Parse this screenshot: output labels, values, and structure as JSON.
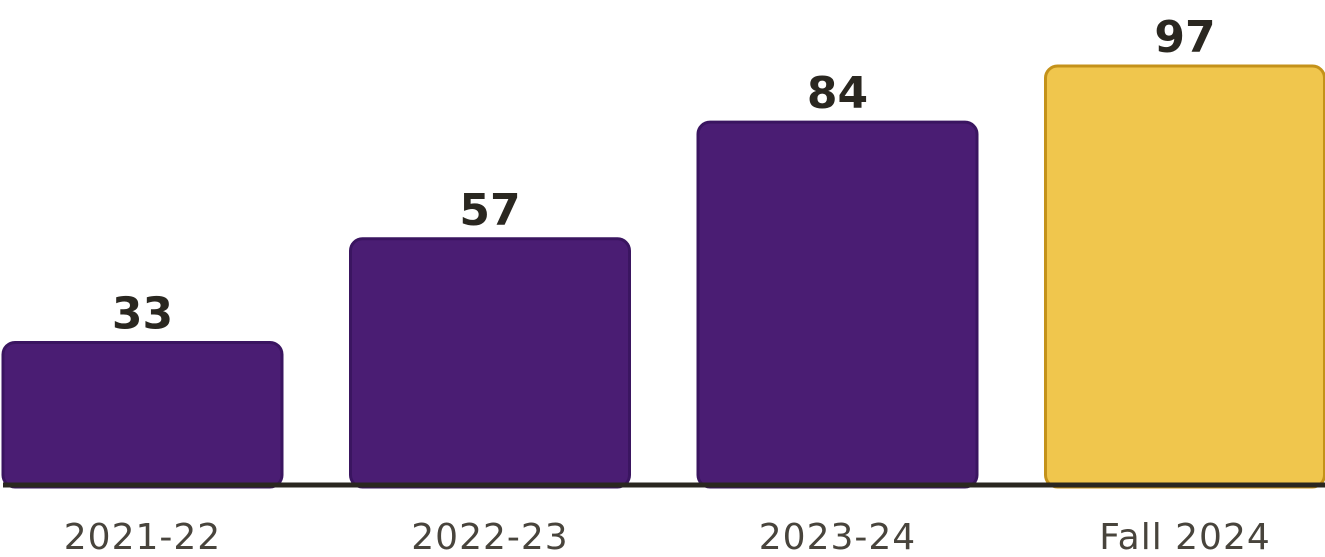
{
  "chart_data": {
    "type": "bar",
    "categories": [
      "2021-22",
      "2022-23",
      "2023-24",
      "Fall 2024"
    ],
    "values": [
      33,
      57,
      84,
      97
    ],
    "title": "",
    "xlabel": "",
    "ylabel": "",
    "ylim": [
      0,
      97
    ],
    "grid": false,
    "legend": "none",
    "colors": {
      "bar_fill": "#4a1d73",
      "bar_stroke": "#3a1560",
      "highlight_fill": "#f0c64d",
      "highlight_stroke": "#c4921a",
      "axis": "#2a2720",
      "value_text": "#2a2720",
      "tick_text": "#48443c"
    },
    "highlight_index": 3
  }
}
